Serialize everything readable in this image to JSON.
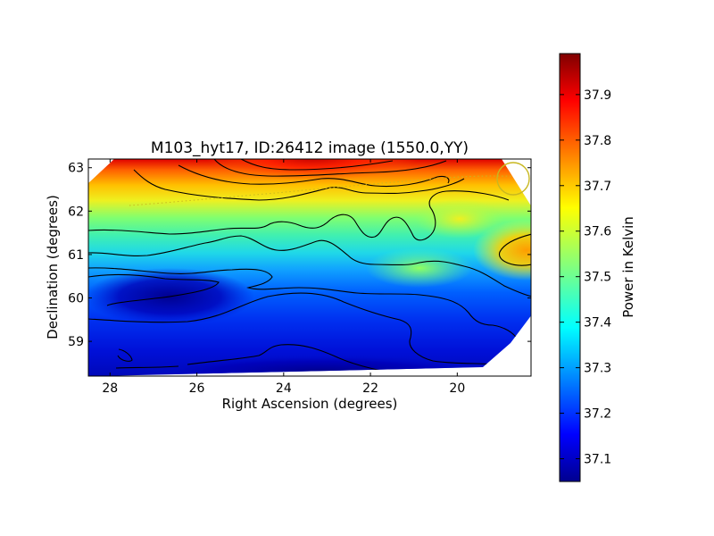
{
  "chart_data": {
    "type": "heatmap",
    "title": "M103_hyt17, ID:26412 image (1550.0,YY)",
    "xlabel": "Right Ascension (degrees)",
    "ylabel": "Declination (degrees)",
    "xlim": [
      28.5,
      18.3
    ],
    "ylim": [
      58.2,
      63.2
    ],
    "x_ticks": [
      28,
      26,
      24,
      22,
      20
    ],
    "y_ticks": [
      59,
      60,
      61,
      62,
      63
    ],
    "colorbar": {
      "label": "Power in Kelvin",
      "range": [
        37.05,
        37.99
      ],
      "ticks": [
        "37.1",
        "37.2",
        "37.3",
        "37.4",
        "37.5",
        "37.6",
        "37.7",
        "37.8",
        "37.9"
      ],
      "colormap": "jet"
    },
    "contour_color": "#000000",
    "markers": [
      {
        "kind": "circle",
        "ra": 18.9,
        "dec": 62.68,
        "radius_deg": 0.36,
        "color": "#c8b820"
      },
      {
        "kind": "dotted-arc",
        "color": "#c8b820",
        "points": [
          [
            27.6,
            62.1
          ],
          [
            25.0,
            62.2
          ],
          [
            22.5,
            62.38
          ],
          [
            20.5,
            62.62
          ],
          [
            18.6,
            62.7
          ]
        ]
      }
    ],
    "features": [
      {
        "kind": "peak",
        "ra": 23.0,
        "dec": 63.2,
        "value": 37.95
      },
      {
        "kind": "peak",
        "ra": 18.5,
        "dec": 61.1,
        "value": 37.74
      },
      {
        "kind": "peak",
        "ra": 20.0,
        "dec": 61.75,
        "value": 37.66
      },
      {
        "kind": "minimum",
        "ra": 26.5,
        "dec": 60.0,
        "value": 37.06
      }
    ],
    "grid": false
  }
}
